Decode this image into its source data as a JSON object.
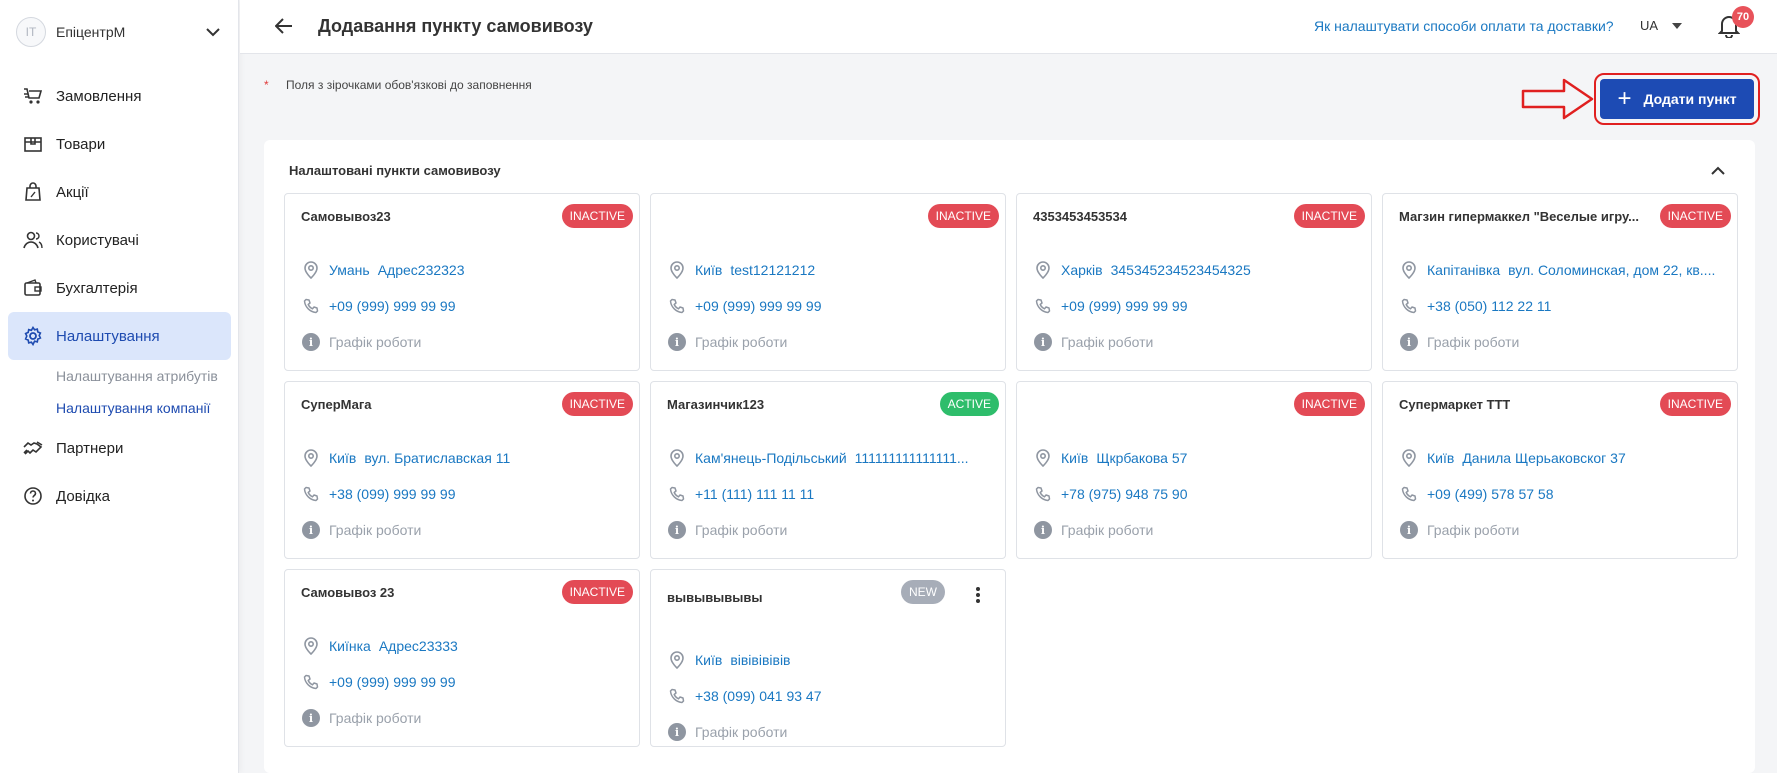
{
  "sidebar": {
    "company_initials": "IT",
    "company_name": "ЕпіцентрМ",
    "items": [
      {
        "label": "Замовлення",
        "icon": "cart-icon"
      },
      {
        "label": "Товари",
        "icon": "box-icon"
      },
      {
        "label": "Акції",
        "icon": "shopping-bag-icon"
      },
      {
        "label": "Користувачі",
        "icon": "users-icon"
      },
      {
        "label": "Бухгалтерія",
        "icon": "wallet-icon"
      },
      {
        "label": "Налаштування",
        "icon": "gear-icon",
        "active": true
      },
      {
        "label": "Партнери",
        "icon": "handshake-icon"
      },
      {
        "label": "Довідка",
        "icon": "help-circle-icon"
      }
    ],
    "subitems": [
      {
        "label": "Налаштування атрибутів"
      },
      {
        "label": "Налаштування компанії",
        "active": true
      }
    ]
  },
  "header": {
    "title": "Додавання пункту самовивозу",
    "help_link": "Як налаштувати способи оплати та доставки?",
    "language": "UA",
    "notifications_count": "70"
  },
  "main": {
    "required_star": "*",
    "required_note": "Поля з зірочками обов'язкові до заповнення",
    "add_button": "Додати пункт",
    "panel_title": "Налаштовані пункти самовивозу",
    "schedule_label": "Графік роботи",
    "points": [
      {
        "name": "Самовывоз23",
        "status": "INACTIVE",
        "city": "Умань",
        "address": "Адрес232323",
        "phone": "+09 (999) 999 99 99"
      },
      {
        "name": "",
        "status": "INACTIVE",
        "city": "Київ",
        "address": "test12121212",
        "phone": "+09 (999) 999 99 99"
      },
      {
        "name": "4353453453534",
        "status": "INACTIVE",
        "city": "Харків",
        "address": "345345234523454325",
        "phone": "+09 (999) 999 99 99"
      },
      {
        "name": "Магзин гипермаккел \"Веселые игру...",
        "status": "INACTIVE",
        "city": "Капітанівка",
        "address": "вул. Соломинская, дом 22, кв....",
        "phone": "+38 (050) 112 22 11"
      },
      {
        "name": "СуперМага",
        "status": "INACTIVE",
        "city": "Київ",
        "address": "вул. Братиславская 11",
        "phone": "+38 (099) 999 99 99"
      },
      {
        "name": "Магазинчик123",
        "status": "ACTIVE",
        "city": "Кам'янець-Подільський",
        "address": "111111111111111...",
        "phone": "+11 (111) 111 11 11"
      },
      {
        "name": "",
        "status": "INACTIVE",
        "city": "Київ",
        "address": "Щкрбакова 57",
        "phone": "+78 (975) 948 75 90"
      },
      {
        "name": "Супермаркет ТТТ",
        "status": "INACTIVE",
        "city": "Київ",
        "address": "Данила Щерьаковског 37",
        "phone": "+09 (499) 578 57 58"
      },
      {
        "name": "Самовывоз 23",
        "status": "INACTIVE",
        "city": "Киїнка",
        "address": "Адрес23333",
        "phone": "+09 (999) 999 99 99"
      },
      {
        "name": "вывывывывы",
        "status": "NEW",
        "city": "Київ",
        "address": "вівівівівів",
        "phone": "+38 (099) 041 93 47"
      }
    ]
  },
  "colors": {
    "accent": "#1d4bb4",
    "link": "#1a78c2",
    "inactive": "#e34a55",
    "active": "#2ebd6b",
    "new": "#a7adb8",
    "annotation": "#e02020"
  }
}
